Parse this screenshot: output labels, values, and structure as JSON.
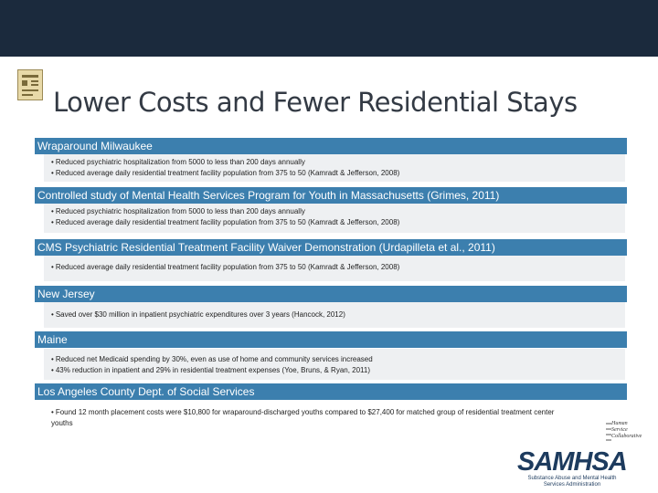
{
  "title": "Lower Costs and Fewer Residential Stays",
  "sections": [
    {
      "header": "Wraparound Milwaukee",
      "bullets": [
        "Reduced psychiatric hospitalization from 5000 to less than 200 days annually",
        "Reduced average daily residential treatment facility population from 375 to 50 (Kamradt & Jefferson, 2008)"
      ]
    },
    {
      "header": "Controlled study of Mental Health Services Program for Youth in Massachusetts (Grimes, 2011)",
      "bullets": [
        "Reduced psychiatric hospitalization from 5000 to less than 200 days annually",
        "Reduced average daily residential treatment facility population from 375 to 50 (Kamradt & Jefferson, 2008)"
      ]
    },
    {
      "header": "CMS Psychiatric Residential Treatment Facility Waiver Demonstration (Urdapilleta et al., 2011)",
      "bullets": [
        "Reduced average daily residential treatment facility population from 375 to 50 (Kamradt & Jefferson, 2008)"
      ]
    },
    {
      "header": "New Jersey",
      "bullets": [
        "Saved over $30 million in inpatient psychiatric expenditures over 3 years (Hancock, 2012)"
      ]
    },
    {
      "header": "Maine",
      "bullets": [
        "Reduced net Medicaid spending by 30%, even as use of home and community services increased",
        "43% reduction in inpatient and 29% in residential treatment expenses (Yoe, Bruns, & Ryan, 2011)"
      ]
    },
    {
      "header": "Los Angeles County Dept. of Social Services",
      "bullets": [
        "Found 12 month placement costs were $10,800 for wraparound-discharged youths compared to $27,400 for matched group of residential treatment center youths"
      ]
    }
  ],
  "logos": {
    "hsc": [
      "Human",
      "Service",
      "Collaborative"
    ],
    "samhsa": "SAMHSA",
    "samhsa_sub_1": "Substance Abuse and Mental Health",
    "samhsa_sub_2": "Services Administration"
  },
  "colors": {
    "top_bar": "#1b2a3d",
    "section_header": "#3c7fae",
    "section_body": "#eef0f2",
    "title_text": "#333a44"
  }
}
